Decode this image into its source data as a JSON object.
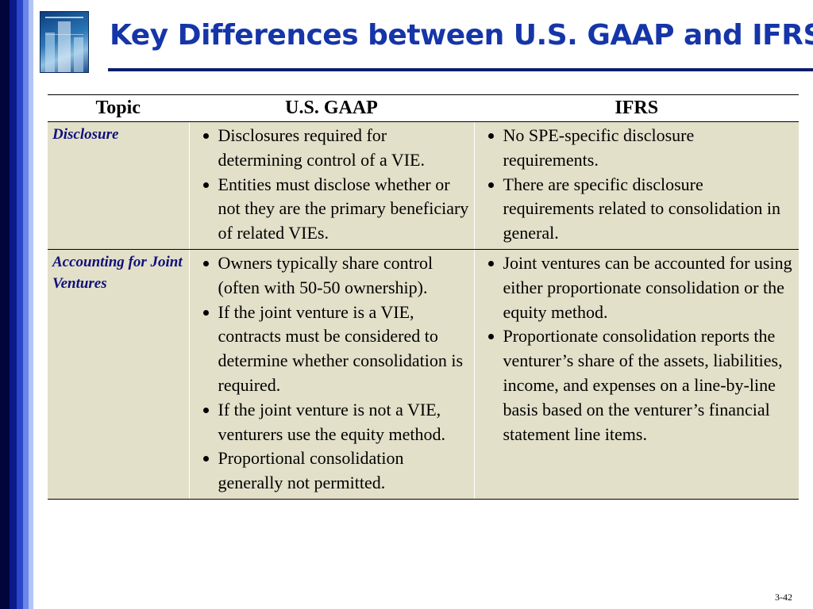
{
  "title": "Key Differences between U.S. GAAP and IFRS",
  "table": {
    "headers": [
      "Topic",
      "U.S. GAAP",
      "IFRS"
    ],
    "rows": [
      {
        "topic": "Disclosure",
        "gaap": [
          "Disclosures required for determining control of a VIE.",
          "Entities must disclose whether or not they are the primary beneficiary of related VIEs."
        ],
        "ifrs": [
          "No SPE-specific disclosure requirements.",
          "There are specific disclosure requirements related to consolidation in general."
        ]
      },
      {
        "topic": "Accounting for Joint Ventures",
        "gaap": [
          "Owners typically share control (often with 50-50 ownership).",
          "If the joint venture is a VIE, contracts must be considered to determine whether consolidation is required.",
          "If the joint venture is not a VIE, venturers use the equity method.",
          "Proportional consolidation generally not permitted."
        ],
        "ifrs": [
          "Joint ventures can be accounted for using either proportionate consolidation or the equity method.",
          "Proportionate consolidation reports the venturer’s share of the assets, liabilities, income, and expenses on a line-by-line basis based on the venturer’s financial statement line items."
        ]
      }
    ]
  },
  "page_number": "3-42",
  "colors": {
    "title": "#1535a8",
    "title_rule": "#0a1f6e",
    "table_body": "#e2e0c9",
    "topic_text": "#10107a"
  },
  "icons": {
    "logo": "textbook-cover-logo",
    "bullet": "bullet-dot-icon"
  }
}
